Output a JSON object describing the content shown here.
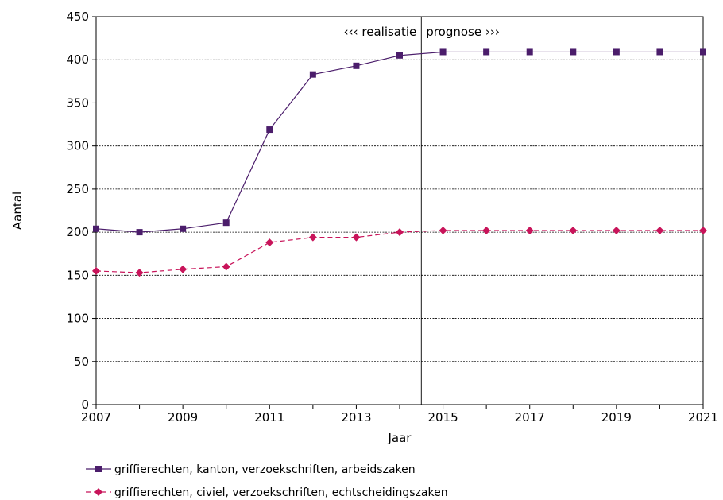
{
  "chart_data": {
    "type": "line",
    "title": "",
    "xlabel": "Jaar",
    "ylabel": "Aantal",
    "xlim": [
      2007,
      2021
    ],
    "ylim": [
      0,
      450
    ],
    "x_ticks": [
      2007,
      2009,
      2011,
      2013,
      2015,
      2017,
      2019,
      2021
    ],
    "y_ticks": [
      0,
      50,
      100,
      150,
      200,
      250,
      300,
      350,
      400,
      450
    ],
    "grid": "horizontal dashed",
    "legend_position": "bottom",
    "x": [
      2007,
      2008,
      2009,
      2010,
      2011,
      2012,
      2013,
      2014,
      2015,
      2016,
      2017,
      2018,
      2019,
      2020,
      2021
    ],
    "series": [
      {
        "name": "griffierechten, kanton, verzoekschriften, arbeidszaken",
        "color": "#4b1d6b",
        "marker": "square",
        "line_style": "solid",
        "values": [
          204,
          200,
          204,
          211,
          319,
          383,
          393,
          405,
          409,
          409,
          409,
          409,
          409,
          409,
          409
        ]
      },
      {
        "name": "griffierechten, civiel, verzoekschriften, echtscheidingszaken",
        "color": "#c8145a",
        "marker": "diamond",
        "line_style": "dashed",
        "values": [
          155,
          153,
          157,
          160,
          188,
          194,
          194,
          200,
          202,
          202,
          202,
          202,
          202,
          202,
          202
        ]
      }
    ],
    "divider_x": 2014.5,
    "annotations": {
      "left": "‹‹‹ realisatie",
      "right": "prognose ›››"
    }
  }
}
